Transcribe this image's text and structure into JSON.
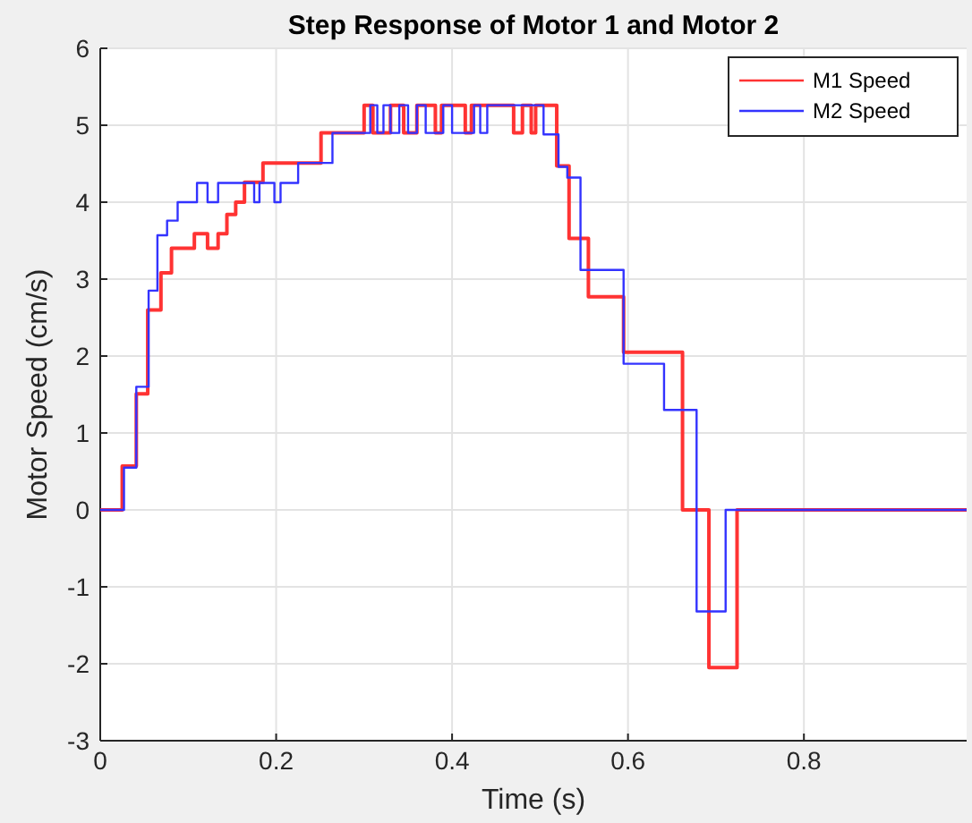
{
  "chart_data": {
    "type": "step",
    "title": "Step Response of Motor 1 and Motor 2",
    "xlabel": "Time (s)",
    "ylabel": "Motor Speed (cm/s)",
    "xlim": [
      0,
      0.985
    ],
    "xticks": [
      0,
      0.2,
      0.4,
      0.6,
      0.8
    ],
    "ylim": [
      -3,
      6
    ],
    "yticks": [
      -3,
      -2,
      -1,
      0,
      1,
      2,
      3,
      4,
      5,
      6
    ],
    "grid": true,
    "legend": "top right",
    "series": [
      {
        "name": "M1 Speed",
        "color": "#ff3333",
        "x": [
          0,
          0.025,
          0.041,
          0.054,
          0.069,
          0.081,
          0.107,
          0.122,
          0.134,
          0.144,
          0.154,
          0.164,
          0.185,
          0.251,
          0.3,
          0.31,
          0.33,
          0.345,
          0.36,
          0.381,
          0.388,
          0.415,
          0.422,
          0.47,
          0.48,
          0.49,
          0.495,
          0.519,
          0.533,
          0.555,
          0.595,
          0.662,
          0.692,
          0.724,
          0.985
        ],
        "values": [
          0,
          0.57,
          1.51,
          2.6,
          3.08,
          3.4,
          3.59,
          3.4,
          3.59,
          3.84,
          4.0,
          4.26,
          4.51,
          4.9,
          5.26,
          4.9,
          5.26,
          4.9,
          5.26,
          4.9,
          5.26,
          4.9,
          5.26,
          4.9,
          5.26,
          4.9,
          5.26,
          4.47,
          3.53,
          2.77,
          2.05,
          0,
          -2.05,
          0,
          0
        ]
      },
      {
        "name": "M2 Speed",
        "color": "#3333ff",
        "x": [
          0,
          0.027,
          0.041,
          0.055,
          0.065,
          0.076,
          0.088,
          0.11,
          0.122,
          0.134,
          0.175,
          0.181,
          0.198,
          0.205,
          0.225,
          0.264,
          0.307,
          0.315,
          0.322,
          0.33,
          0.34,
          0.35,
          0.36,
          0.37,
          0.39,
          0.4,
          0.425,
          0.432,
          0.44,
          0.504,
          0.521,
          0.531,
          0.546,
          0.595,
          0.641,
          0.678,
          0.711,
          0.985
        ],
        "values": [
          0,
          0.55,
          1.6,
          2.85,
          3.57,
          3.76,
          4.0,
          4.25,
          4.0,
          4.25,
          4.0,
          4.25,
          4.0,
          4.25,
          4.51,
          4.9,
          5.26,
          4.9,
          5.26,
          4.9,
          5.26,
          4.9,
          5.26,
          4.9,
          5.26,
          4.9,
          5.26,
          4.9,
          5.26,
          4.88,
          4.46,
          4.32,
          3.12,
          1.9,
          1.3,
          -1.32,
          0,
          0
        ]
      }
    ]
  }
}
